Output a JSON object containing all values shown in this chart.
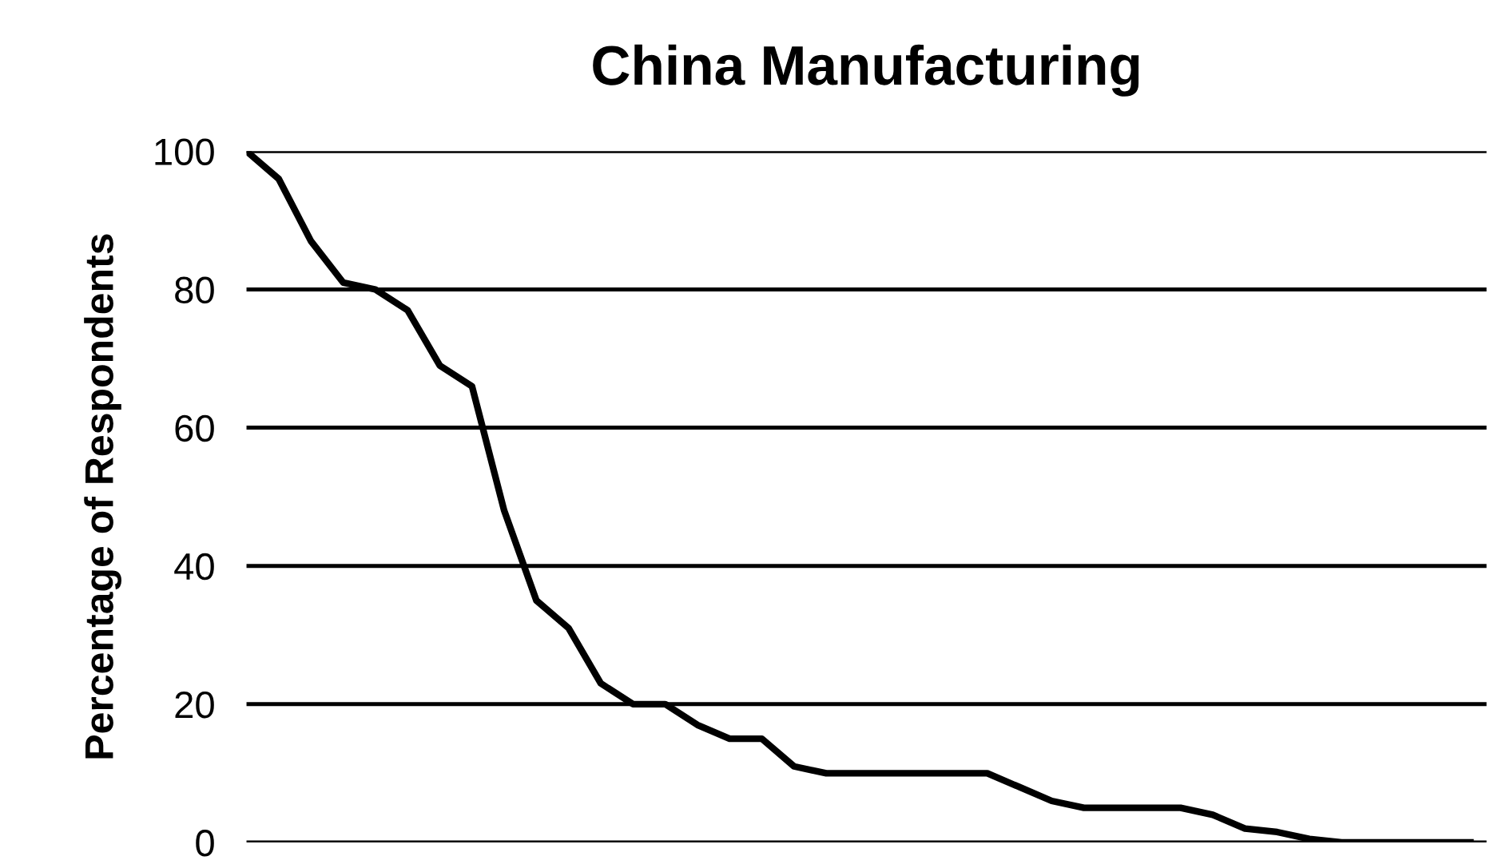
{
  "chart_data": {
    "type": "line",
    "title": "China Manufacturing",
    "ylabel": "Percentage of Respondents",
    "categories": [
      null,
      null,
      null,
      null,
      null,
      null,
      null,
      null,
      null,
      null,
      null,
      null,
      null,
      null,
      null,
      null,
      null,
      null,
      null,
      null,
      null,
      null,
      null,
      null,
      null,
      null,
      null,
      null,
      null,
      null,
      null,
      null,
      null,
      null,
      null,
      null,
      null,
      null,
      null
    ],
    "series": [
      {
        "color": "#000000",
        "values": [
          100,
          96,
          87,
          81,
          80,
          77,
          69,
          66,
          48,
          35,
          31,
          23,
          20,
          20,
          17,
          15,
          15,
          11,
          10,
          10,
          10,
          10,
          10,
          10,
          8,
          6,
          5,
          5,
          5,
          5,
          4,
          2,
          1.5,
          0.5,
          0,
          0,
          0,
          0,
          0
        ]
      }
    ],
    "ylim": [
      0,
      100
    ],
    "yticks": [
      0,
      20,
      40,
      60,
      80,
      100
    ],
    "grid": "y",
    "marker": "none",
    "line_style": "solid"
  }
}
